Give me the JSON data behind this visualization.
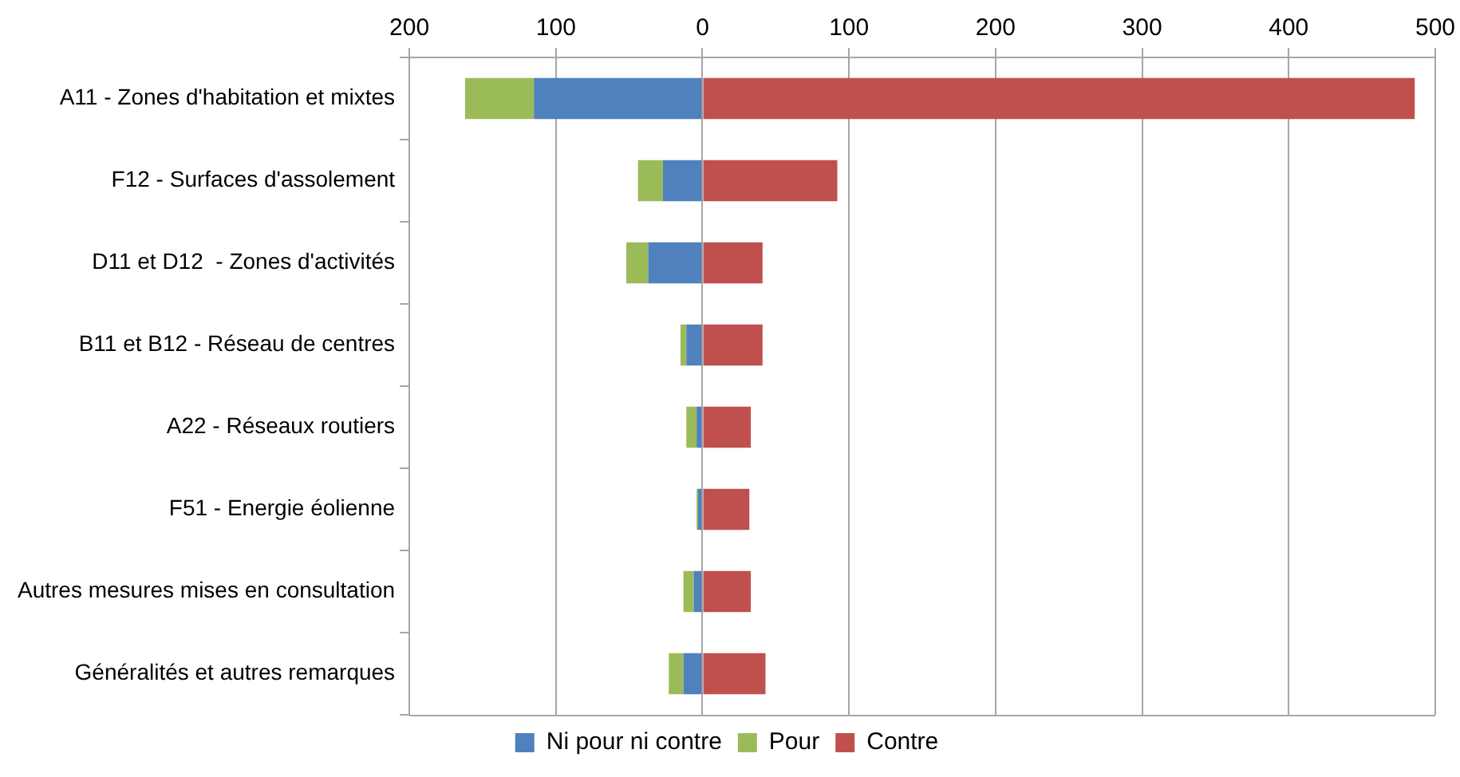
{
  "chart_data": {
    "type": "bar",
    "orientation": "horizontal",
    "stacked": true,
    "categories": [
      "A11 - Zones d'habitation et mixtes",
      "F12 - Surfaces d'assolement",
      "D11 et D12  - Zones d'activités",
      "B11 et B12 - Réseau de centres",
      "A22 - Réseaux routiers",
      "F51 - Energie éolienne",
      "Autres mesures mises en consultation",
      "Généralités et autres remarques"
    ],
    "series": [
      {
        "name": "Ni pour ni contre",
        "color": "#4f81bd",
        "values": [
          -115,
          -27,
          -37,
          -11,
          -4,
          -3,
          -6,
          -13
        ]
      },
      {
        "name": "Pour",
        "color": "#9bbb59",
        "values": [
          -47,
          -17,
          -15,
          -4,
          -7,
          -1,
          -7,
          -10
        ]
      },
      {
        "name": "Contre",
        "color": "#c0504d",
        "values": [
          486,
          92,
          41,
          41,
          33,
          32,
          33,
          43
        ]
      }
    ],
    "xlim": [
      -200,
      500
    ],
    "xticks": [
      {
        "value": -200,
        "label": "200"
      },
      {
        "value": -100,
        "label": "100"
      },
      0,
      100,
      200,
      300,
      400,
      500
    ],
    "grid": "x",
    "legend": "bottom"
  }
}
